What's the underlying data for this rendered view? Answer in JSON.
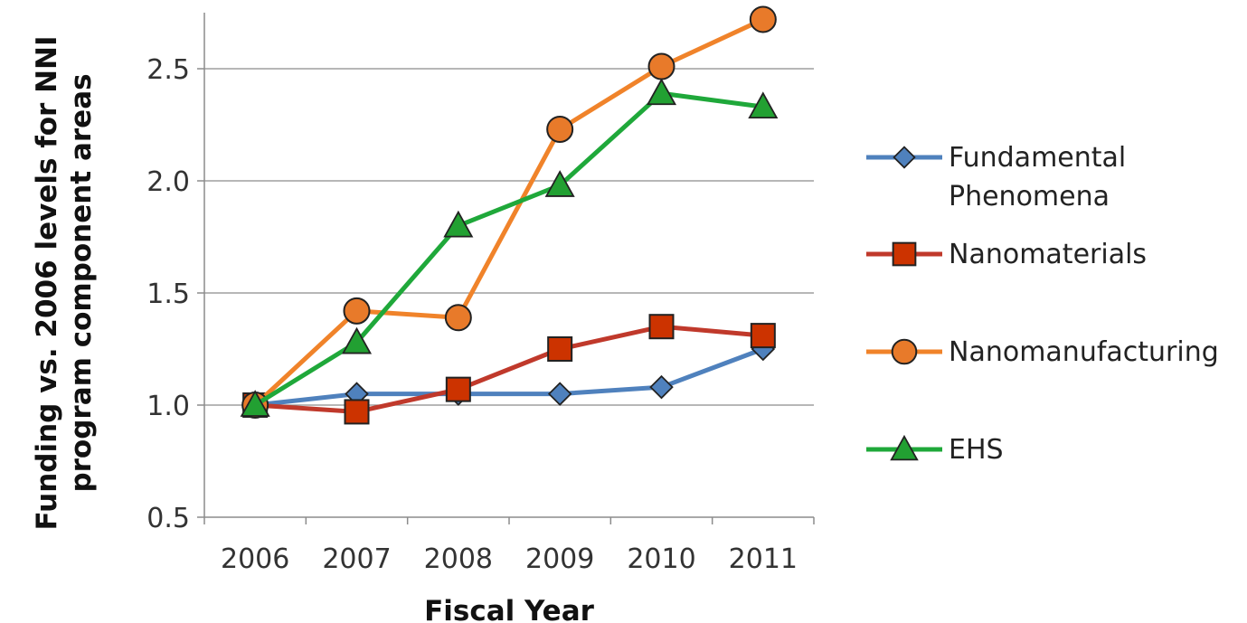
{
  "chart_data": {
    "type": "line",
    "title": "",
    "xlabel": "Fiscal Year",
    "ylabel": "Funding vs. 2006 levels for NNI program component areas",
    "ylabel_lines": [
      "Funding vs. 2006 levels  for NNI",
      "program component areas"
    ],
    "categories": [
      "2006",
      "2007",
      "2008",
      "2009",
      "2010",
      "2011"
    ],
    "ylim": [
      0.5,
      2.75
    ],
    "yticks": [
      "0.5",
      "1.0",
      "1.5",
      "2.0",
      "2.5"
    ],
    "ytick_values": [
      0.5,
      1.0,
      1.5,
      2.0,
      2.5
    ],
    "grid": true,
    "legend_position": "right",
    "series": [
      {
        "name": "Fundamental Phenomena",
        "name_lines": [
          "Fundamental",
          "Phenomena"
        ],
        "values": [
          1.0,
          1.05,
          1.05,
          1.05,
          1.08,
          1.25
        ],
        "color": "#4f81bd",
        "marker": "diamond"
      },
      {
        "name": "Nanomaterials",
        "name_lines": [
          "Nanomaterials"
        ],
        "values": [
          1.0,
          0.97,
          1.07,
          1.25,
          1.35,
          1.31
        ],
        "color": "#c0392b",
        "marker_fill": "#cc3300",
        "marker": "square"
      },
      {
        "name": "Nanomanufacturing",
        "name_lines": [
          "Nanomanufacturing"
        ],
        "values": [
          1.0,
          1.42,
          1.39,
          2.23,
          2.51,
          2.72
        ],
        "color": "#f0832a",
        "marker_fill": "#e87a2a",
        "marker": "circle"
      },
      {
        "name": "EHS",
        "name_lines": [
          "EHS"
        ],
        "values": [
          1.0,
          1.28,
          1.8,
          1.98,
          2.39,
          2.33
        ],
        "color": "#1fa83a",
        "marker_fill": "#22a032",
        "marker": "triangle"
      }
    ]
  }
}
